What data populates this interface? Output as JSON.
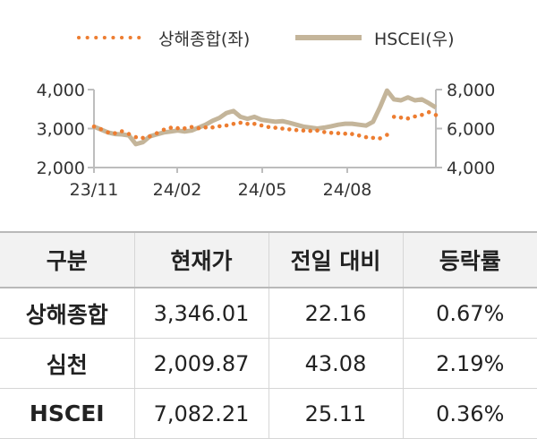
{
  "chart_data": {
    "type": "line",
    "x_ticks": [
      "23/11",
      "24/02",
      "24/05",
      "24/08"
    ],
    "y_left": {
      "ticks": [
        "2,000",
        "3,000",
        "4,000"
      ],
      "ylim": [
        2000,
        4000
      ]
    },
    "y_right": {
      "ticks": [
        "4,000",
        "6,000",
        "8,000"
      ],
      "ylim": [
        4000,
        8000
      ]
    },
    "legend_position": "top",
    "grid": false,
    "series": [
      {
        "name": "상해종합(좌)",
        "axis": "left",
        "style": "dotted",
        "color": "#ed7d31",
        "values": [
          3050,
          2985,
          2900,
          2880,
          2930,
          2860,
          2780,
          2760,
          2800,
          2880,
          2970,
          3020,
          3010,
          3005,
          3040,
          3010,
          3030,
          3030,
          3060,
          3080,
          3120,
          3150,
          3120,
          3120,
          3080,
          3040,
          3020,
          3000,
          2980,
          2960,
          2950,
          2940,
          2950,
          2910,
          2890,
          2880,
          2870,
          2860,
          2820,
          2780,
          2760,
          2750,
          2840,
          3300,
          3280,
          3260,
          3310,
          3350,
          3420,
          3346
        ]
      },
      {
        "name": "HSCEI(우)",
        "axis": "right",
        "style": "solid",
        "color": "#c4b59a",
        "values": [
          6100,
          5950,
          5800,
          5720,
          5700,
          5650,
          5200,
          5300,
          5600,
          5700,
          5800,
          5850,
          5900,
          5850,
          5900,
          6050,
          6200,
          6400,
          6550,
          6800,
          6900,
          6600,
          6500,
          6600,
          6450,
          6400,
          6350,
          6380,
          6300,
          6200,
          6100,
          6050,
          6000,
          6050,
          6120,
          6200,
          6250,
          6250,
          6200,
          6150,
          6350,
          7100,
          7950,
          7500,
          7450,
          7600,
          7450,
          7500,
          7300,
          7082
        ]
      }
    ]
  },
  "table": {
    "headers": [
      "구분",
      "현재가",
      "전일 대비",
      "등락률"
    ],
    "rows": [
      [
        "상해종합",
        "3,346.01",
        "22.16",
        "0.67%"
      ],
      [
        "심천",
        "2,009.87",
        "43.08",
        "2.19%"
      ],
      [
        "HSCEI",
        "7,082.21",
        "25.11",
        "0.36%"
      ]
    ]
  }
}
